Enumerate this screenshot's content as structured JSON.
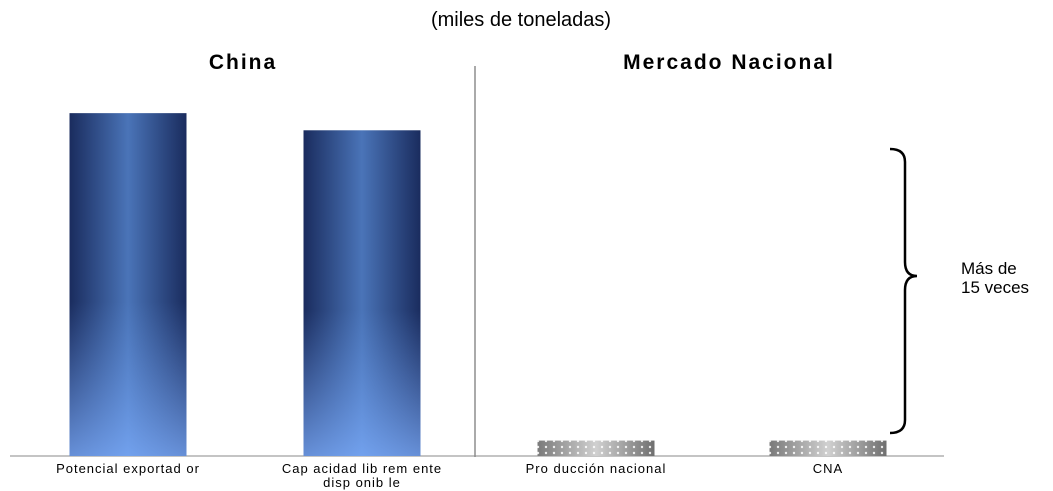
{
  "chart_data": {
    "type": "bar",
    "subtitle": "(miles de toneladas)",
    "groups": [
      {
        "title": "China",
        "categories": [
          "Potencial exportador",
          "Capacidad libremente disponible"
        ]
      },
      {
        "title": "Mercado Nacional",
        "categories": [
          "Producción nacional",
          "CNA"
        ]
      }
    ],
    "categories": [
      "Potencial exportador",
      "Capacidad libremente disponible",
      "Producción nacional",
      "CNA"
    ],
    "tick_labels": [
      [
        "Potencial exportad or"
      ],
      [
        "Cap acidad lib rem ente",
        "disp onib le"
      ],
      [
        "Pro ducción nacional"
      ],
      [
        "CNA"
      ]
    ],
    "values": [
      100,
      95,
      4.5,
      4.5
    ],
    "bar_styles": [
      "blue-gradient",
      "blue-gradient",
      "gray-pattern",
      "gray-pattern"
    ],
    "ylim": [
      0,
      105
    ],
    "grid": false,
    "annotation": {
      "lines": [
        "Más de",
        "15 veces"
      ],
      "from_value": 95,
      "to_value": 0
    }
  }
}
